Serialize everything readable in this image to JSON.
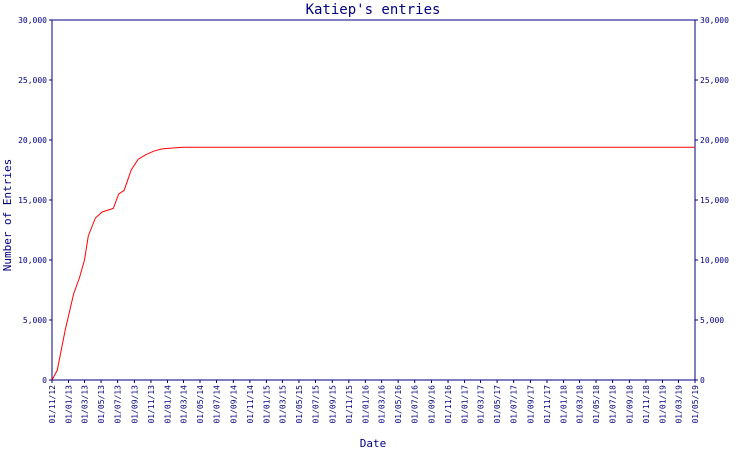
{
  "chart_data": {
    "type": "line",
    "title": "Katiep's entries",
    "xlabel": "Date",
    "ylabel": "Number of Entries",
    "ylim": [
      0,
      30000
    ],
    "y_ticks": [
      "0",
      "5,000",
      "10,000",
      "15,000",
      "20,000",
      "25,000",
      "30,000"
    ],
    "x_ticks": [
      "01/11/12",
      "01/01/13",
      "01/03/13",
      "01/05/13",
      "01/07/13",
      "01/09/13",
      "01/11/13",
      "01/01/14",
      "01/03/14",
      "01/05/14",
      "01/07/14",
      "01/09/14",
      "01/11/14",
      "01/01/15",
      "01/03/15",
      "01/05/15",
      "01/07/15",
      "01/09/15",
      "01/11/15",
      "01/01/16",
      "01/03/16",
      "01/05/16",
      "01/07/16",
      "01/09/16",
      "01/11/16",
      "01/01/17",
      "01/03/17",
      "01/05/17",
      "01/07/17",
      "01/09/17",
      "01/11/17",
      "01/01/18",
      "01/03/18",
      "01/05/18",
      "01/07/18",
      "01/09/18",
      "01/11/18",
      "01/01/19",
      "01/03/19",
      "01/05/19"
    ],
    "grid": false,
    "colors": {
      "axis": "#000080",
      "line": "#ff0000"
    },
    "series": [
      {
        "x": [
          "2012-11-01",
          "2012-11-20",
          "2012-12-20",
          "2013-01-20",
          "2013-02-10",
          "2013-03-01",
          "2013-03-15",
          "2013-04-10",
          "2013-05-05",
          "2013-06-01",
          "2013-06-15",
          "2013-07-05",
          "2013-07-25",
          "2013-08-20",
          "2013-09-15",
          "2013-10-15",
          "2013-11-15",
          "2013-12-10",
          "2014-01-01",
          "2014-02-01",
          "2014-03-01",
          "2014-06-01",
          "2015-06-01",
          "2016-06-01",
          "2017-06-01",
          "2018-06-01",
          "2019-05-01"
        ],
        "values": [
          0,
          800,
          4200,
          7200,
          8500,
          10000,
          12000,
          13500,
          14000,
          14200,
          14300,
          15500,
          15800,
          17500,
          18400,
          18800,
          19100,
          19250,
          19300,
          19350,
          19400,
          19400,
          19400,
          19400,
          19400,
          19400,
          19400
        ]
      }
    ]
  }
}
